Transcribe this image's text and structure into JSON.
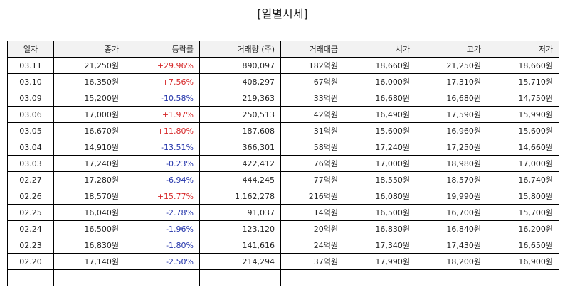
{
  "title": "[일별시세]",
  "table": {
    "header": [
      "일자",
      "종가",
      "등락률",
      "거래량 (주)",
      "거래대금",
      "시가",
      "고가",
      "저가"
    ],
    "rows": [
      [
        "03.11",
        "21,250원",
        "+29.96%",
        "890,097",
        "182억원",
        "18,660원",
        "21,250원",
        "18,660원"
      ],
      [
        "03.10",
        "16,350원",
        "+7.56%",
        "408,297",
        "67억원",
        "16,000원",
        "17,310원",
        "15,710원"
      ],
      [
        "03.09",
        "15,200원",
        "-10.58%",
        "219,363",
        "33억원",
        "16,680원",
        "16,680원",
        "14,750원"
      ],
      [
        "03.06",
        "17,000원",
        "+1.97%",
        "250,513",
        "42억원",
        "16,490원",
        "17,590원",
        "15,990원"
      ],
      [
        "03.05",
        "16,670원",
        "+11.80%",
        "187,608",
        "31억원",
        "15,600원",
        "16,960원",
        "15,600원"
      ],
      [
        "03.04",
        "14,910원",
        "-13.51%",
        "366,301",
        "58억원",
        "17,240원",
        "17,250원",
        "14,660원"
      ],
      [
        "03.03",
        "17,240원",
        "-0.23%",
        "422,412",
        "76억원",
        "17,000원",
        "18,980원",
        "17,000원"
      ],
      [
        "02.27",
        "17,280원",
        "-6.94%",
        "444,245",
        "77억원",
        "18,550원",
        "18,570원",
        "16,740원"
      ],
      [
        "02.26",
        "18,570원",
        "+15.77%",
        "1,162,278",
        "216억원",
        "16,080원",
        "19,990원",
        "15,800원"
      ],
      [
        "02.25",
        "16,040원",
        "-2.78%",
        "91,037",
        "14억원",
        "16,500원",
        "16,700원",
        "15,700원"
      ],
      [
        "02.24",
        "16,500원",
        "-1.96%",
        "123,120",
        "20억원",
        "16,830원",
        "16,840원",
        "16,200원"
      ],
      [
        "02.23",
        "16,830원",
        "-1.80%",
        "141,616",
        "24억원",
        "17,340원",
        "17,430원",
        "16,650원"
      ],
      [
        "02.20",
        "17,140원",
        "-2.50%",
        "214,294",
        "37억원",
        "17,990원",
        "18,200원",
        "16,900원"
      ]
    ]
  }
}
